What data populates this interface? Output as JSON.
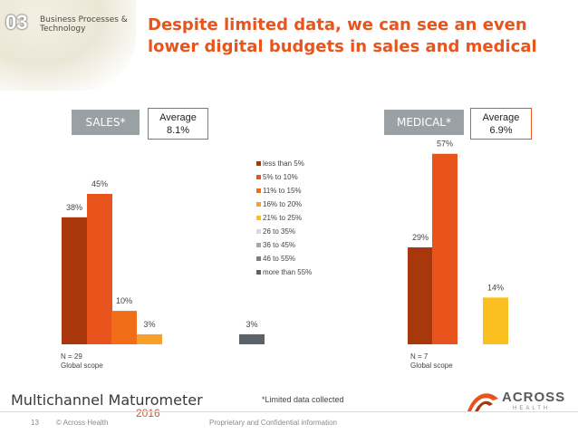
{
  "header": {
    "section_number": "03",
    "section_name": "Business Processes & Technology",
    "headline": "Despite limited data, we can see an even lower digital budgets in sales and medical"
  },
  "panels": {
    "sales": {
      "tag": "SALES*",
      "avg_label": "Average",
      "avg_value": "8.1%",
      "n": "N = 29",
      "scope": "Global scope"
    },
    "medical": {
      "tag": "MEDICAL*",
      "avg_label": "Average",
      "avg_value": "6.9%",
      "n": "N = 7",
      "scope": "Global scope"
    }
  },
  "footnote": "*Limited data collected",
  "footer": {
    "page": "13",
    "copyright": "© Across Health",
    "confidential": "Proprietary and Confidential information",
    "logo_text": "Multichannel Maturometer",
    "logo_year": "2016",
    "brand_name": "ACROSS",
    "brand_sub": "HEALTH"
  },
  "colors": {
    "accent": "#e8541c",
    "tag_gray": "#9aa1a4"
  },
  "chart_data": [
    {
      "type": "bar",
      "panel": "sales",
      "series": [
        {
          "name": "less than 5%",
          "color": "#a8380c",
          "value": 38,
          "label": "38%"
        },
        {
          "name": "5% to 10%",
          "color": "#e8541c",
          "value": 45,
          "label": "45%"
        },
        {
          "name": "11% to 15%",
          "color": "#f26d18",
          "value": 10,
          "label": "10%"
        },
        {
          "name": "16% to 20%",
          "color": "#f7a12a",
          "value": 3,
          "label": "3%"
        },
        {
          "name": "21% to 25%",
          "color": "#fbbf1f",
          "value": 0,
          "label": ""
        },
        {
          "name": "26 to 35%",
          "color": "#d9d9d9",
          "value": 0,
          "label": ""
        },
        {
          "name": "36 to 45%",
          "color": "#a7a7a7",
          "value": 0,
          "label": ""
        },
        {
          "name": "46 to 55%",
          "color": "#7e7e7e",
          "value": 0,
          "label": ""
        },
        {
          "name": "more than 55%",
          "color": "#5b6369",
          "value": 3,
          "label": "3%"
        }
      ]
    },
    {
      "type": "bar",
      "panel": "medical",
      "series": [
        {
          "name": "less than 5%",
          "color": "#a8380c",
          "value": 29,
          "label": "29%"
        },
        {
          "name": "5% to 10%",
          "color": "#e8541c",
          "value": 57,
          "label": "57%"
        },
        {
          "name": "11% to 15%",
          "color": "#f26d18",
          "value": 0,
          "label": ""
        },
        {
          "name": "16% to 20%",
          "color": "#f7a12a",
          "value": 0,
          "label": ""
        },
        {
          "name": "21% to 25%",
          "color": "#fbbf1f",
          "value": 14,
          "label": "14%"
        },
        {
          "name": "26 to 35%",
          "color": "#d9d9d9",
          "value": 0,
          "label": ""
        },
        {
          "name": "36 to 45%",
          "color": "#a7a7a7",
          "value": 0,
          "label": ""
        },
        {
          "name": "46 to 55%",
          "color": "#7e7e7e",
          "value": 0,
          "label": ""
        },
        {
          "name": "more than 55%",
          "color": "#5b6369",
          "value": 0,
          "label": ""
        }
      ]
    }
  ],
  "legend": [
    {
      "label": "less than 5%",
      "color": "#a8380c"
    },
    {
      "label": "5% to 10%",
      "color": "#e8541c"
    },
    {
      "label": "11% to 15%",
      "color": "#f26d18"
    },
    {
      "label": "16% to 20%",
      "color": "#f7a12a"
    },
    {
      "label": "21% to 25%",
      "color": "#fbbf1f"
    },
    {
      "label": "26 to 35%",
      "color": "#d9d9d9"
    },
    {
      "label": "36 to 45%",
      "color": "#a7a7a7"
    },
    {
      "label": "46 to 55%",
      "color": "#7e7e7e"
    },
    {
      "label": "more than 55%",
      "color": "#5b6369"
    }
  ]
}
